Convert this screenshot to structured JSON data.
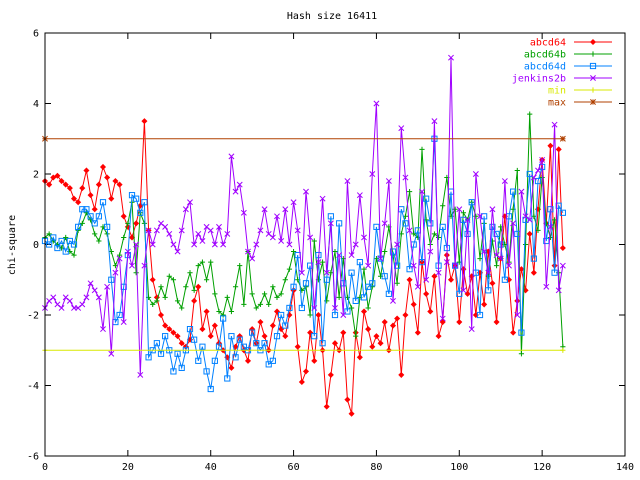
{
  "chart_data": {
    "type": "line",
    "title": "Hash size 16411",
    "xlabel": "",
    "ylabel": "chi-square",
    "xlim": [
      0,
      140
    ],
    "ylim": [
      -6,
      6
    ],
    "xticks": [
      0,
      20,
      40,
      60,
      80,
      100,
      120,
      140
    ],
    "yticks": [
      -6,
      -4,
      -2,
      0,
      2,
      4,
      6
    ],
    "grid": false,
    "legend_position": "top-right",
    "series": [
      {
        "name": "abcd64",
        "color": "#ff0000",
        "marker": "diamond",
        "x": [
          0,
          1,
          2,
          3,
          4,
          5,
          6,
          7,
          8,
          9,
          10,
          11,
          12,
          13,
          14,
          15,
          16,
          17,
          18,
          19,
          20,
          21,
          22,
          23,
          24,
          25,
          26,
          27,
          28,
          29,
          30,
          31,
          32,
          33,
          34,
          35,
          36,
          37,
          38,
          39,
          40,
          41,
          42,
          43,
          44,
          45,
          46,
          47,
          48,
          49,
          50,
          51,
          52,
          53,
          54,
          55,
          56,
          57,
          58,
          59,
          60,
          61,
          62,
          63,
          64,
          65,
          66,
          67,
          68,
          69,
          70,
          71,
          72,
          73,
          74,
          75,
          76,
          77,
          78,
          79,
          80,
          81,
          82,
          83,
          84,
          85,
          86,
          87,
          88,
          89,
          90,
          91,
          92,
          93,
          94,
          95,
          96,
          97,
          98,
          99,
          100,
          101,
          102,
          103,
          104,
          105,
          106,
          107,
          108,
          109,
          110,
          111,
          112,
          113,
          114,
          115,
          116,
          117,
          118,
          119,
          120,
          121,
          122,
          123,
          124,
          125
        ],
        "y": [
          1.8,
          1.7,
          1.9,
          1.95,
          1.8,
          1.7,
          1.6,
          1.3,
          1.2,
          1.6,
          2.1,
          1.4,
          1.0,
          1.7,
          2.2,
          1.9,
          1.3,
          1.8,
          1.7,
          0.8,
          0.5,
          0.2,
          0.6,
          1.1,
          3.5,
          0.4,
          -1.0,
          -1.5,
          -2.0,
          -2.3,
          -2.4,
          -2.5,
          -2.6,
          -2.8,
          -2.9,
          -2.7,
          -1.6,
          -1.2,
          -2.4,
          -1.9,
          -2.6,
          -2.3,
          -2.8,
          -3.0,
          -3.2,
          -3.5,
          -2.9,
          -2.6,
          -3.0,
          -3.3,
          -2.4,
          -2.8,
          -2.2,
          -2.6,
          -3.0,
          -2.3,
          -1.9,
          -2.4,
          -2.6,
          -2.0,
          -1.3,
          -2.9,
          -3.9,
          -3.6,
          -2.5,
          -3.3,
          -2.0,
          -3.0,
          -4.6,
          -3.7,
          -2.8,
          -3.0,
          -2.5,
          -4.4,
          -4.8,
          -2.5,
          -3.2,
          -1.9,
          -2.4,
          -2.9,
          -2.6,
          -2.8,
          -2.2,
          -3.0,
          -2.3,
          -2.1,
          -3.7,
          -2.0,
          -1.0,
          -1.7,
          -2.5,
          -0.5,
          -1.4,
          -1.9,
          -0.9,
          -2.6,
          -2.2,
          -0.3,
          -1.0,
          -0.6,
          -2.2,
          -0.7,
          -1.4,
          -0.9,
          -2.0,
          -0.8,
          -1.7,
          -0.2,
          -1.1,
          -2.2,
          -0.4,
          0.8,
          -1.0,
          -2.5,
          -1.6,
          -0.7,
          -1.3,
          0.3,
          -0.8,
          1.0,
          2.4,
          0.6,
          2.8,
          -0.6,
          2.7,
          -0.1
        ]
      },
      {
        "name": "abcd64b",
        "color": "#00a000",
        "marker": "plus",
        "x": [
          0,
          1,
          2,
          3,
          4,
          5,
          6,
          7,
          8,
          9,
          10,
          11,
          12,
          13,
          14,
          15,
          16,
          17,
          18,
          19,
          20,
          21,
          22,
          23,
          24,
          25,
          26,
          27,
          28,
          29,
          30,
          31,
          32,
          33,
          34,
          35,
          36,
          37,
          38,
          39,
          40,
          41,
          42,
          43,
          44,
          45,
          46,
          47,
          48,
          49,
          50,
          51,
          52,
          53,
          54,
          55,
          56,
          57,
          58,
          59,
          60,
          61,
          62,
          63,
          64,
          65,
          66,
          67,
          68,
          69,
          70,
          71,
          72,
          73,
          74,
          75,
          76,
          77,
          78,
          79,
          80,
          81,
          82,
          83,
          84,
          85,
          86,
          87,
          88,
          89,
          90,
          91,
          92,
          93,
          94,
          95,
          96,
          97,
          98,
          99,
          100,
          101,
          102,
          103,
          104,
          105,
          106,
          107,
          108,
          109,
          110,
          111,
          112,
          113,
          114,
          115,
          116,
          117,
          118,
          119,
          120,
          121,
          122,
          123,
          124,
          125
        ],
        "y": [
          0.2,
          0.3,
          0.1,
          0.0,
          -0.1,
          0.2,
          -0.2,
          -0.3,
          0.4,
          0.6,
          0.9,
          0.7,
          0.3,
          0.1,
          0.5,
          0.3,
          -0.2,
          -0.6,
          -0.3,
          0.2,
          0.6,
          1.2,
          -0.8,
          0.9,
          0.6,
          -1.5,
          -1.7,
          -1.6,
          -1.2,
          -1.5,
          -0.9,
          -1.0,
          -1.6,
          -1.8,
          -1.2,
          -0.8,
          -1.3,
          -0.6,
          -0.5,
          -1.0,
          -0.5,
          -1.4,
          -1.9,
          -2.0,
          -1.5,
          -1.9,
          -1.2,
          -0.6,
          -1.7,
          -0.2,
          -1.4,
          -1.8,
          -1.7,
          -1.4,
          -1.7,
          -1.2,
          -1.5,
          -1.4,
          -1.0,
          -0.7,
          -0.2,
          -1.0,
          -1.3,
          -1.2,
          -2.0,
          0.1,
          -1.0,
          -0.5,
          -1.6,
          -0.8,
          -0.2,
          -1.5,
          -0.4,
          -1.5,
          -1.8,
          -2.6,
          -1.5,
          -0.7,
          -1.8,
          -1.2,
          -0.4,
          -0.9,
          -0.2,
          0.5,
          -0.3,
          -1.1,
          0.3,
          0.8,
          1.5,
          0.3,
          0.2,
          2.7,
          0.7,
          0.0,
          0.3,
          0.2,
          1.1,
          1.9,
          0.8,
          1.0,
          -0.5,
          0.9,
          0.7,
          1.2,
          0.8,
          -0.4,
          0.6,
          -0.9,
          0.1,
          -0.6,
          0.5,
          0.0,
          -0.5,
          1.0,
          2.1,
          -3.1,
          0.0,
          3.7,
          0.8,
          0.4,
          1.9,
          0.6,
          0.2,
          0.7,
          -0.8,
          -2.9
        ]
      },
      {
        "name": "abcd64d",
        "color": "#0080ff",
        "marker": "square",
        "x": [
          0,
          1,
          2,
          3,
          4,
          5,
          6,
          7,
          8,
          9,
          10,
          11,
          12,
          13,
          14,
          15,
          16,
          17,
          18,
          19,
          20,
          21,
          22,
          23,
          24,
          25,
          26,
          27,
          28,
          29,
          30,
          31,
          32,
          33,
          34,
          35,
          36,
          37,
          38,
          39,
          40,
          41,
          42,
          43,
          44,
          45,
          46,
          47,
          48,
          49,
          50,
          51,
          52,
          53,
          54,
          55,
          56,
          57,
          58,
          59,
          60,
          61,
          62,
          63,
          64,
          65,
          66,
          67,
          68,
          69,
          70,
          71,
          72,
          73,
          74,
          75,
          76,
          77,
          78,
          79,
          80,
          81,
          82,
          83,
          84,
          85,
          86,
          87,
          88,
          89,
          90,
          91,
          92,
          93,
          94,
          95,
          96,
          97,
          98,
          99,
          100,
          101,
          102,
          103,
          104,
          105,
          106,
          107,
          108,
          109,
          110,
          111,
          112,
          113,
          114,
          115,
          116,
          117,
          118,
          119,
          120,
          121,
          122,
          123,
          124,
          125
        ],
        "y": [
          0.1,
          0.0,
          0.2,
          -0.1,
          0.1,
          -0.2,
          0.1,
          0.0,
          0.5,
          1.0,
          1.0,
          0.8,
          0.6,
          0.8,
          1.2,
          0.5,
          -1.0,
          -2.2,
          -2.0,
          -1.2,
          -0.3,
          1.4,
          1.3,
          0.9,
          1.2,
          -3.2,
          -3.0,
          -2.8,
          -3.1,
          -2.6,
          -3.0,
          -3.6,
          -3.1,
          -3.5,
          -3.0,
          -2.4,
          -2.7,
          -3.3,
          -2.9,
          -3.6,
          -4.1,
          -3.3,
          -2.9,
          -2.1,
          -3.8,
          -2.6,
          -3.2,
          -2.7,
          -2.9,
          -3.0,
          -2.5,
          -2.8,
          -3.0,
          -2.8,
          -3.4,
          -3.3,
          -2.6,
          -2.0,
          -2.3,
          -1.8,
          -1.2,
          -0.3,
          -1.8,
          -1.1,
          -0.6,
          -2.6,
          -0.3,
          -2.8,
          -1.0,
          0.8,
          -2.0,
          0.6,
          -1.1,
          -1.9,
          -0.8,
          -1.6,
          -0.5,
          -1.5,
          -1.2,
          -1.1,
          0.5,
          -0.4,
          -0.9,
          -1.4,
          -0.2,
          -0.6,
          1.0,
          0.6,
          -0.7,
          0.0,
          0.4,
          -0.5,
          1.3,
          0.6,
          3.0,
          -0.6,
          0.5,
          -0.1,
          1.5,
          -0.6,
          -1.4,
          0.7,
          0.3,
          1.2,
          -0.8,
          -2.0,
          0.8,
          -1.3,
          0.5,
          0.3,
          0.0,
          -1.0,
          0.8,
          1.5,
          0.3,
          -2.5,
          0.7,
          2.0,
          -0.4,
          1.8,
          2.2,
          0.1,
          1.0,
          -0.8,
          1.1,
          0.9
        ]
      },
      {
        "name": "jenkins2b",
        "color": "#a000ff",
        "marker": "cross",
        "x": [
          0,
          1,
          2,
          3,
          4,
          5,
          6,
          7,
          8,
          9,
          10,
          11,
          12,
          13,
          14,
          15,
          16,
          17,
          18,
          19,
          20,
          21,
          22,
          23,
          24,
          25,
          26,
          27,
          28,
          29,
          30,
          31,
          32,
          33,
          34,
          35,
          36,
          37,
          38,
          39,
          40,
          41,
          42,
          43,
          44,
          45,
          46,
          47,
          48,
          49,
          50,
          51,
          52,
          53,
          54,
          55,
          56,
          57,
          58,
          59,
          60,
          61,
          62,
          63,
          64,
          65,
          66,
          67,
          68,
          69,
          70,
          71,
          72,
          73,
          74,
          75,
          76,
          77,
          78,
          79,
          80,
          81,
          82,
          83,
          84,
          85,
          86,
          87,
          88,
          89,
          90,
          91,
          92,
          93,
          94,
          95,
          96,
          97,
          98,
          99,
          100,
          101,
          102,
          103,
          104,
          105,
          106,
          107,
          108,
          109,
          110,
          111,
          112,
          113,
          114,
          115,
          116,
          117,
          118,
          119,
          120,
          121,
          122,
          123,
          124,
          125
        ],
        "y": [
          -1.8,
          -1.6,
          -1.5,
          -1.7,
          -1.8,
          -1.5,
          -1.6,
          -1.8,
          -1.8,
          -1.7,
          -1.5,
          -1.1,
          -1.3,
          -1.5,
          -2.4,
          -1.2,
          -3.1,
          -0.8,
          -0.4,
          -2.2,
          -0.2,
          -0.6,
          0.0,
          -3.7,
          -0.6,
          0.4,
          0.0,
          0.4,
          0.6,
          0.5,
          0.3,
          0.0,
          -0.2,
          0.4,
          1.0,
          1.2,
          0.0,
          0.3,
          0.1,
          0.5,
          0.4,
          0.0,
          0.5,
          0.0,
          0.3,
          2.5,
          1.5,
          1.7,
          0.9,
          -0.2,
          -0.4,
          0.0,
          0.4,
          1.0,
          0.3,
          0.2,
          0.8,
          0.1,
          1.0,
          0.0,
          1.2,
          0.4,
          -0.8,
          1.5,
          0.2,
          -1.8,
          -0.5,
          1.3,
          -0.8,
          0.6,
          -1.8,
          -0.3,
          -2.0,
          1.8,
          -0.3,
          0.0,
          1.4,
          0.2,
          -0.6,
          2.0,
          4.0,
          -0.4,
          0.6,
          1.8,
          -1.6,
          0.0,
          3.3,
          1.9,
          0.4,
          -0.6,
          -1.2,
          1.5,
          -1.0,
          -0.2,
          3.5,
          -0.8,
          -2.1,
          -0.5,
          5.3,
          -0.6,
          1.0,
          -1.3,
          0.7,
          -2.4,
          2.0,
          0.8,
          -0.2,
          -0.8,
          1.0,
          -0.3,
          -0.4,
          1.8,
          -0.6,
          0.6,
          -2.0,
          1.5,
          0.8,
          0.7,
          1.9,
          2.1,
          2.4,
          -1.2,
          0.5,
          3.4,
          -1.3,
          -0.6
        ]
      },
      {
        "name": "min",
        "color": "#d8e800",
        "marker": "plus",
        "x": [
          0,
          125
        ],
        "y": [
          -3.0,
          -3.0
        ]
      },
      {
        "name": "max",
        "color": "#b04000",
        "marker": "star",
        "x": [
          0,
          125
        ],
        "y": [
          3.0,
          3.0
        ]
      }
    ]
  }
}
